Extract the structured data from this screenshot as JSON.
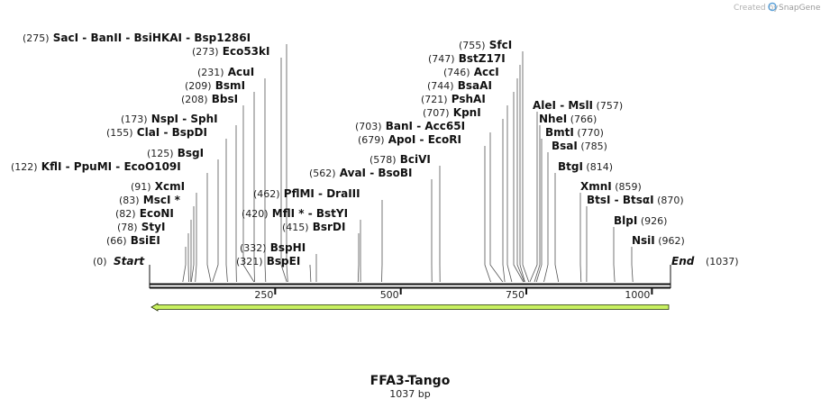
{
  "credit": {
    "text": "Created by",
    "brand": "SnapGene"
  },
  "sequence": {
    "name": "FFA3-Tango",
    "length_label": "1037 bp",
    "length": 1037
  },
  "ends": {
    "start": {
      "label": "Start",
      "pos": 0,
      "pos_label": "(0)"
    },
    "end": {
      "label": "End",
      "pos": 1037,
      "pos_label": "(1037)"
    }
  },
  "ruler": [
    {
      "value": 250,
      "label": "250"
    },
    {
      "value": 500,
      "label": "500"
    },
    {
      "value": 750,
      "label": "750"
    },
    {
      "value": 1000,
      "label": "1000"
    }
  ],
  "feature": {
    "name": "orf-arrow",
    "direction": "reverse",
    "from": 0,
    "to": 1037,
    "color": "#c8f060",
    "outline": "#1f2e00"
  },
  "sites": [
    {
      "pos_label": "(275)",
      "names": [
        "SacI",
        "BanII",
        "BsiHKAI",
        "Bsp1286I"
      ],
      "site": 275,
      "side": "left"
    },
    {
      "pos_label": "(273)",
      "names": [
        "Eco53kI"
      ],
      "site": 273,
      "side": "left"
    },
    {
      "pos_label": "(231)",
      "names": [
        "AcuI"
      ],
      "site": 231,
      "side": "left"
    },
    {
      "pos_label": "(209)",
      "names": [
        "BsmI"
      ],
      "site": 209,
      "side": "left"
    },
    {
      "pos_label": "(208)",
      "names": [
        "BbsI"
      ],
      "site": 208,
      "side": "left"
    },
    {
      "pos_label": "(173)",
      "names": [
        "NspI",
        "SphI"
      ],
      "site": 173,
      "side": "left"
    },
    {
      "pos_label": "(155)",
      "names": [
        "ClaI",
        "BspDI"
      ],
      "site": 155,
      "side": "left"
    },
    {
      "pos_label": "(125)",
      "names": [
        "BsgI"
      ],
      "site": 125,
      "side": "left"
    },
    {
      "pos_label": "(122)",
      "names": [
        "KflI",
        "PpuMI",
        "EcoO109I"
      ],
      "site": 122,
      "side": "left"
    },
    {
      "pos_label": "(91)",
      "names": [
        "XcmI"
      ],
      "site": 91,
      "side": "left"
    },
    {
      "pos_label": "(83)",
      "names": [
        "MscI *"
      ],
      "site": 83,
      "side": "left"
    },
    {
      "pos_label": "(82)",
      "names": [
        "EcoNI"
      ],
      "site": 82,
      "side": "left"
    },
    {
      "pos_label": "(78)",
      "names": [
        "StyI"
      ],
      "site": 78,
      "side": "left"
    },
    {
      "pos_label": "(66)",
      "names": [
        "BsiEI"
      ],
      "site": 66,
      "side": "left"
    },
    {
      "pos_label": "(462)",
      "names": [
        "PflMI",
        "DraIII"
      ],
      "site": 462,
      "side": "left"
    },
    {
      "pos_label": "(420)",
      "names": [
        "MflI *",
        "BstYI"
      ],
      "site": 420,
      "side": "left"
    },
    {
      "pos_label": "(415)",
      "names": [
        "BsrDI"
      ],
      "site": 415,
      "side": "left"
    },
    {
      "pos_label": "(332)",
      "names": [
        "BspHI"
      ],
      "site": 332,
      "side": "left"
    },
    {
      "pos_label": "(321)",
      "names": [
        "BspEI"
      ],
      "site": 321,
      "side": "left"
    },
    {
      "pos_label": "(578)",
      "names": [
        "BciVI"
      ],
      "site": 578,
      "side": "left"
    },
    {
      "pos_label": "(562)",
      "names": [
        "AvaI",
        "BsoBI"
      ],
      "site": 562,
      "side": "left"
    },
    {
      "pos_label": "(755)",
      "names": [
        "SfcI"
      ],
      "site": 755,
      "side": "left"
    },
    {
      "pos_label": "(747)",
      "names": [
        "BstZ17I"
      ],
      "site": 747,
      "side": "left"
    },
    {
      "pos_label": "(746)",
      "names": [
        "AccI"
      ],
      "site": 746,
      "side": "left"
    },
    {
      "pos_label": "(744)",
      "names": [
        "BsaAI"
      ],
      "site": 744,
      "side": "left"
    },
    {
      "pos_label": "(721)",
      "names": [
        "PshAI"
      ],
      "site": 721,
      "side": "left"
    },
    {
      "pos_label": "(707)",
      "names": [
        "KpnI"
      ],
      "site": 707,
      "side": "left"
    },
    {
      "pos_label": "(703)",
      "names": [
        "BanI",
        "Acc65I"
      ],
      "site": 703,
      "side": "left"
    },
    {
      "pos_label": "(679)",
      "names": [
        "ApoI",
        "EcoRI"
      ],
      "site": 679,
      "side": "left"
    },
    {
      "pos_label": "(757)",
      "names": [
        "AleI",
        "MslI"
      ],
      "site": 757,
      "side": "right"
    },
    {
      "pos_label": "(766)",
      "names": [
        "NheI"
      ],
      "site": 766,
      "side": "right"
    },
    {
      "pos_label": "(770)",
      "names": [
        "BmtI"
      ],
      "site": 770,
      "side": "right"
    },
    {
      "pos_label": "(785)",
      "names": [
        "BsaI"
      ],
      "site": 785,
      "side": "right"
    },
    {
      "pos_label": "(814)",
      "names": [
        "BtgI"
      ],
      "site": 814,
      "side": "right"
    },
    {
      "pos_label": "(859)",
      "names": [
        "XmnI"
      ],
      "site": 859,
      "side": "right"
    },
    {
      "pos_label": "(870)",
      "names": [
        "BtsI",
        "BtsαI"
      ],
      "site": 870,
      "side": "right"
    },
    {
      "pos_label": "(926)",
      "names": [
        "BlpI"
      ],
      "site": 926,
      "side": "right"
    },
    {
      "pos_label": "(962)",
      "names": [
        "NsiI"
      ],
      "site": 962,
      "side": "right"
    }
  ]
}
